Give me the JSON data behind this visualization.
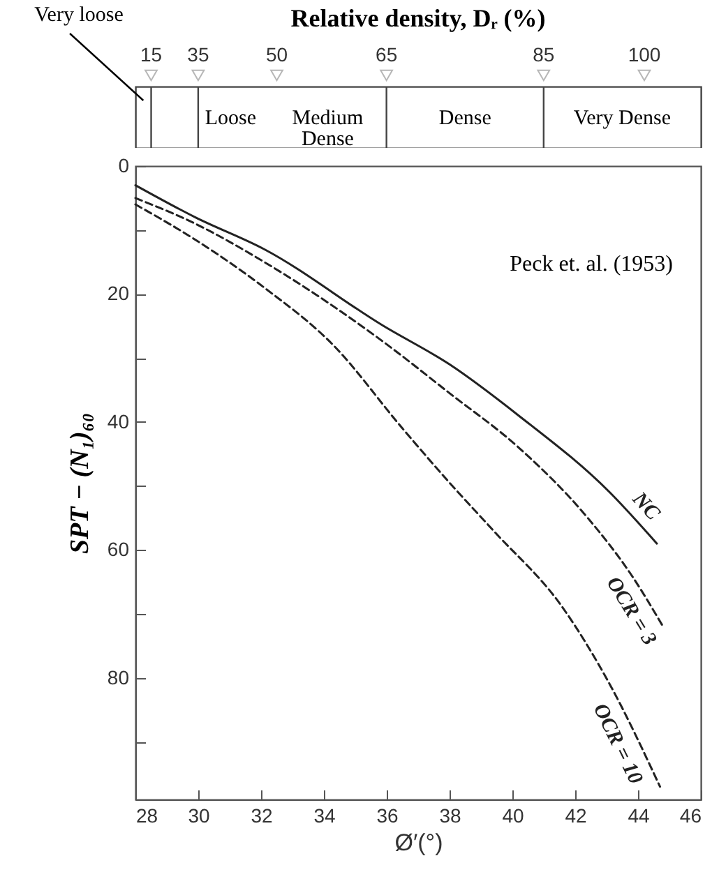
{
  "chart_data": [
    {
      "type": "other",
      "title": "Relative density, Dᵣ (%)",
      "annotations": [
        "Very loose",
        "Loose",
        "Medium Dense",
        "Dense",
        "Very Dense",
        "15",
        "35",
        "50",
        "65",
        "85",
        "100"
      ]
    },
    {
      "type": "line",
      "xlabel": "Ø′(°)",
      "ylabel": "SPT − (N₁)₆₀",
      "annotations": [
        "Peck et. al. (1953)"
      ],
      "xlim": [
        28,
        46
      ],
      "xticks": [
        28,
        30,
        32,
        34,
        36,
        38,
        40,
        42,
        44,
        46
      ],
      "ylim": [
        99,
        0
      ],
      "yticks": [
        0,
        {
          "value": 10,
          "label": null
        },
        20,
        {
          "value": 30,
          "label": null
        },
        40,
        {
          "value": 50,
          "label": null
        },
        60,
        {
          "value": 70,
          "label": null
        },
        80,
        {
          "value": 90,
          "label": null
        }
      ],
      "grid": false,
      "legend": false,
      "marker": "none",
      "series": [
        {
          "name": "NC",
          "color": "#222222",
          "line_style": "solid",
          "x": [
            28,
            29.9,
            32.1,
            35.9,
            38,
            40.2,
            43.1,
            44.6
          ],
          "values": [
            3,
            8,
            13,
            25,
            31,
            39,
            51,
            59
          ]
        },
        {
          "name": "OCR = 3",
          "color": "#222222",
          "line_style": "dashed",
          "x": [
            28,
            29.9,
            32.1,
            35.9,
            38,
            40.2,
            42.4,
            43.8,
            44.8
          ],
          "values": [
            5,
            9,
            15,
            27.5,
            35.5,
            44,
            55,
            64,
            72
          ]
        },
        {
          "name": "OCR = 10",
          "color": "#222222",
          "line_style": "dashed",
          "x": [
            28,
            29.9,
            32.1,
            34.3,
            36.5,
            38,
            39.4,
            41.6,
            43.1,
            44.7
          ],
          "values": [
            6,
            11.5,
            19,
            28,
            41,
            49.5,
            57,
            69,
            81,
            97
          ]
        }
      ]
    }
  ]
}
